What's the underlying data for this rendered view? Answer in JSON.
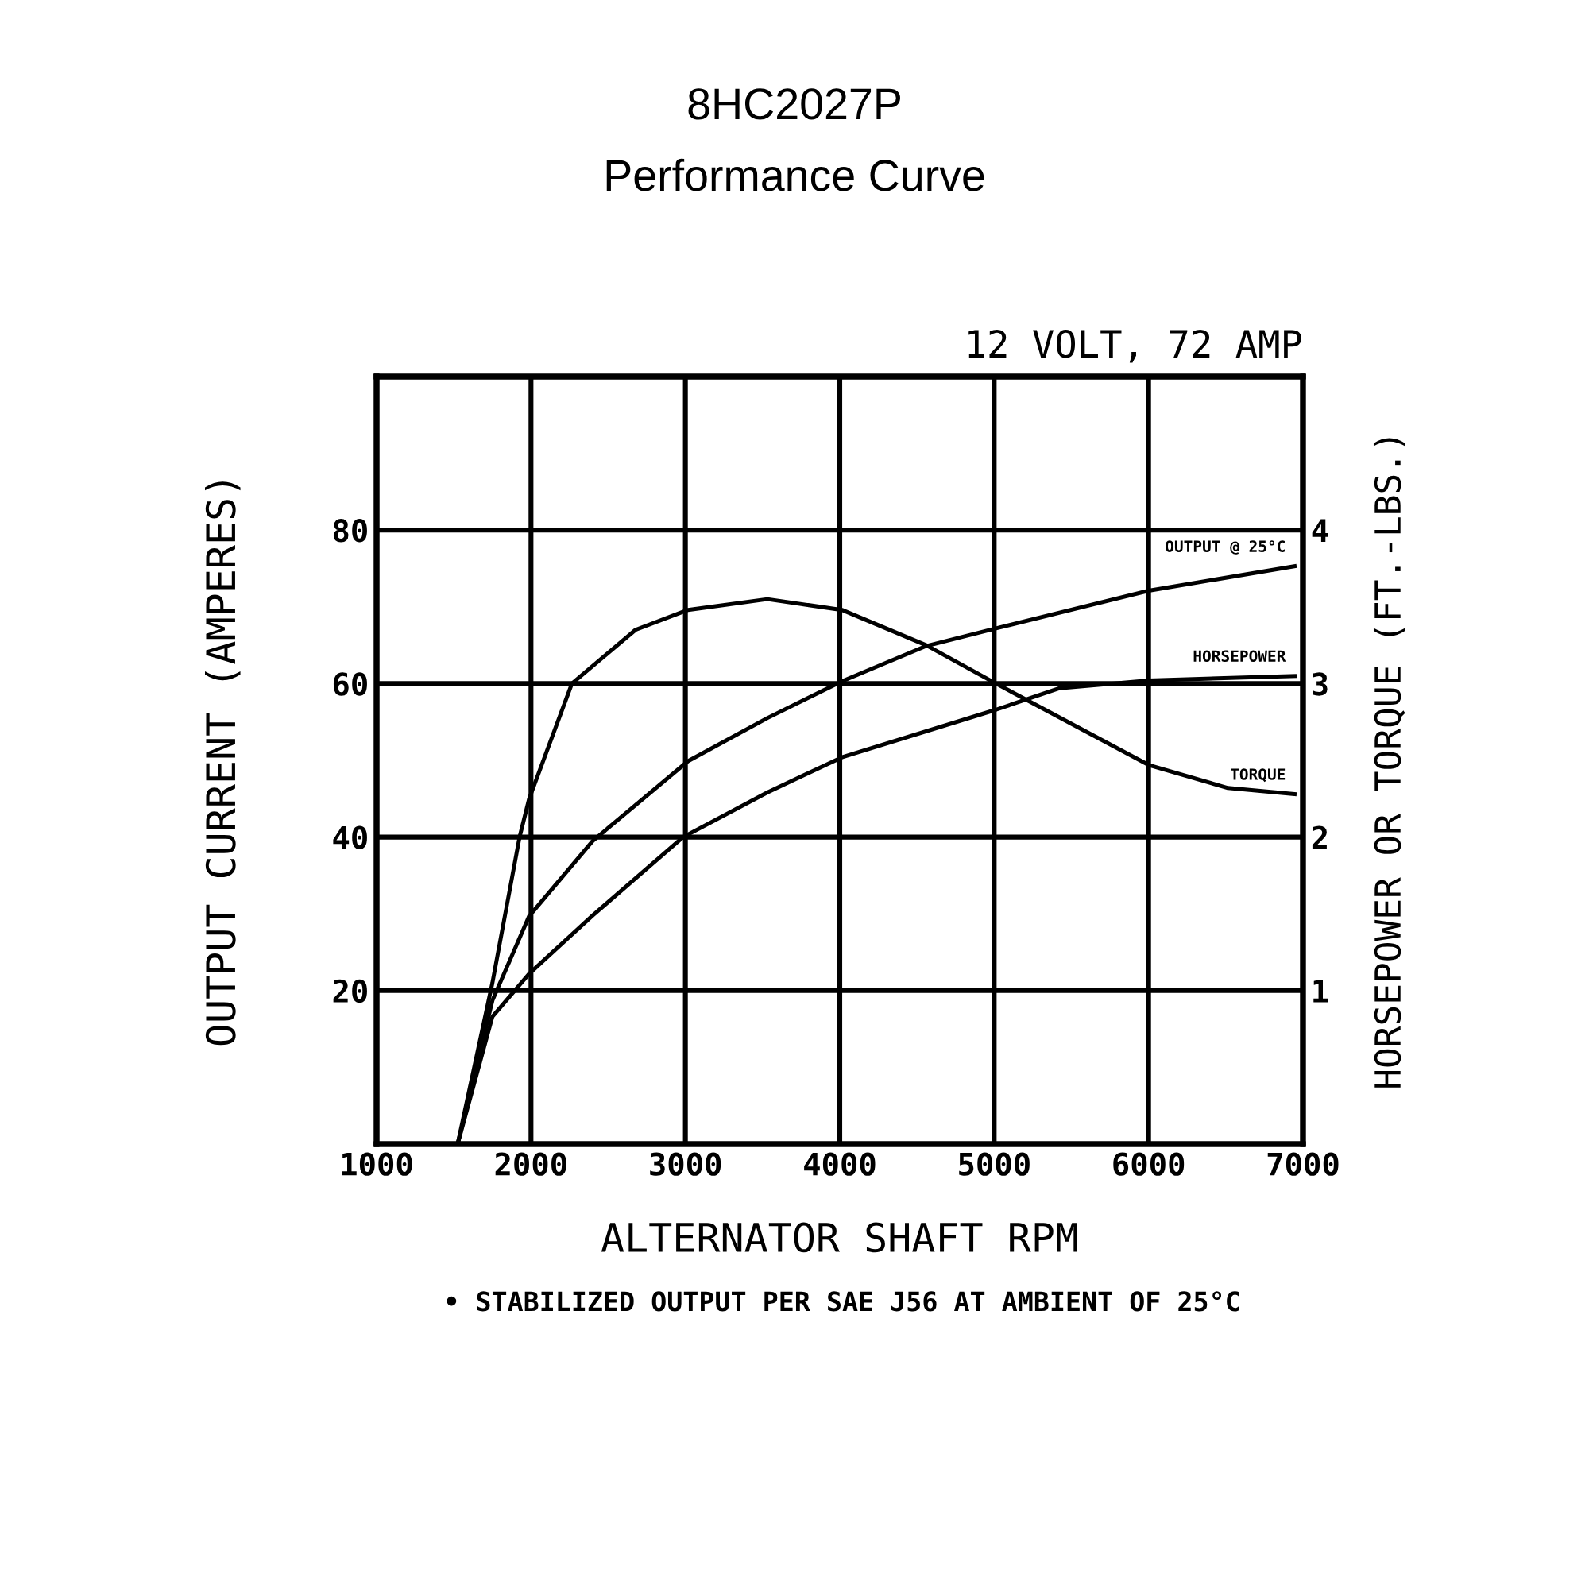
{
  "chart_data": {
    "type": "line",
    "title": "8HC2027P",
    "subtitle": "Performance Curve",
    "xlabel": "ALTERNATOR SHAFT RPM",
    "ylabel": "OUTPUT CURRENT (AMPERES)",
    "y2label": "HORSEPOWER OR TORQUE (FT.-LBS.)",
    "annotations": [
      "12 VOLT, 72 AMP",
      "• STABILIZED OUTPUT PER SAE J56 AT AMBIENT OF 25°C"
    ],
    "xlim": [
      1000,
      7000
    ],
    "xticks": [
      1000,
      2000,
      3000,
      4000,
      5000,
      6000,
      7000
    ],
    "ylim": [
      0,
      100
    ],
    "yticks": [
      20,
      40,
      60,
      80
    ],
    "y2lim": [
      0,
      5
    ],
    "y2ticks": [
      1,
      2,
      3,
      4
    ],
    "grid": true,
    "marker": "none",
    "line_style": "solid",
    "series": [
      {
        "name": "OUTPUT @ 25°C",
        "color": "#000000",
        "x": [
          1525,
          1750,
          1988,
          2400,
          3017,
          3530,
          4014,
          4560,
          5012,
          6000,
          6946
        ],
        "values": [
          0,
          18.7,
          29.7,
          39.5,
          49.9,
          55.5,
          60.3,
          64.9,
          67.2,
          72.1,
          75.3
        ]
      },
      {
        "name": "HORSEPOWER",
        "color": "#000000",
        "axis": "y2",
        "x": [
          1525,
          1750,
          1988,
          2400,
          2985,
          3530,
          4014,
          5012,
          5424,
          6000,
          6946
        ],
        "values": [
          0,
          0.83,
          1.11,
          1.49,
          2.0,
          2.29,
          2.52,
          2.83,
          2.97,
          3.02,
          3.05
        ]
      },
      {
        "name": "TORQUE",
        "color": "#000000",
        "axis": "y2",
        "x": [
          1525,
          1750,
          1926,
          1988,
          2265,
          2677,
          3017,
          3531,
          4014,
          4560,
          5012,
          6000,
          6514,
          6946
        ],
        "values": [
          0,
          1.05,
          2.0,
          2.25,
          3.0,
          3.35,
          3.48,
          3.55,
          3.48,
          3.25,
          3.0,
          2.47,
          2.32,
          2.28
        ]
      }
    ]
  }
}
